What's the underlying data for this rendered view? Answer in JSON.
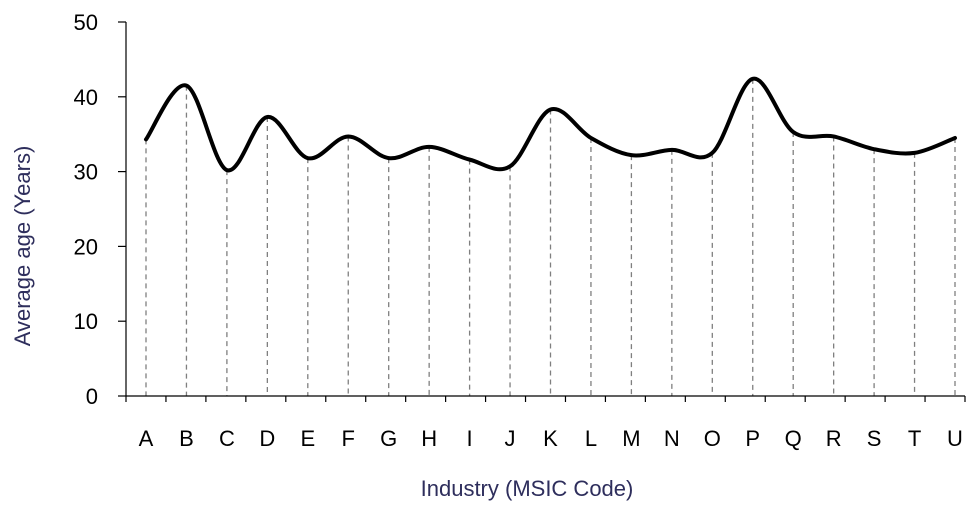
{
  "chart_data": {
    "type": "line",
    "title": "",
    "xlabel": "Industry (MSIC Code)",
    "ylabel": "Average age (Years)",
    "categories": [
      "A",
      "B",
      "C",
      "D",
      "E",
      "F",
      "G",
      "H",
      "I",
      "J",
      "K",
      "L",
      "M",
      "N",
      "O",
      "P",
      "Q",
      "R",
      "S",
      "T",
      "U"
    ],
    "values": [
      34.3,
      41.5,
      30.2,
      37.3,
      31.8,
      34.7,
      31.8,
      33.3,
      31.6,
      30.7,
      38.3,
      34.5,
      32.2,
      32.9,
      32.5,
      42.4,
      35.3,
      34.7,
      33.0,
      32.5,
      34.5
    ],
    "ylim": [
      0,
      50
    ],
    "yticks": [
      "0",
      "10",
      "20",
      "30",
      "40",
      "50"
    ],
    "grid": false,
    "drop_lines": true,
    "smooth": true,
    "legend": "none",
    "colors": {
      "line": "#000000",
      "axis": "#000000",
      "drop_line": "#7f7f7f",
      "axis_title": "#2e2e5c"
    }
  }
}
